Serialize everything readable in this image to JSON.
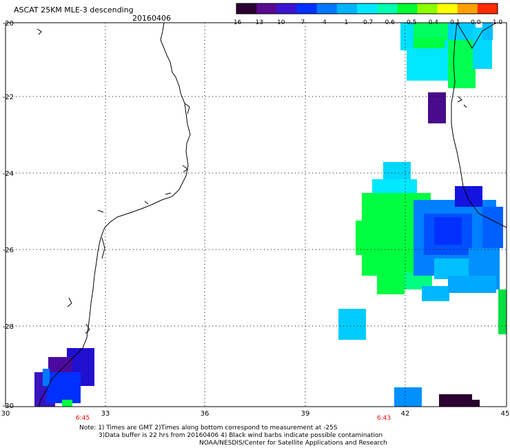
{
  "header": {
    "title": "ASCAT 25KM MLE-3 descending",
    "date": "20160406"
  },
  "colorbar": {
    "labels": [
      "-16",
      "-13",
      "-10",
      "-7",
      "-4",
      "-1",
      "-0.7",
      "-0.6",
      "-0.5",
      "-0.4",
      "-0.1",
      "0.0",
      "1.0"
    ],
    "colors": [
      "#2a0030",
      "#5a0a90",
      "#3a14d0",
      "#0030ff",
      "#0078ff",
      "#00b4ff",
      "#00e8ff",
      "#00ffb0",
      "#00ff30",
      "#8cff00",
      "#ffff00",
      "#ffa000",
      "#ff2a00"
    ]
  },
  "axes": {
    "y_ticks": [
      "-20",
      "-22",
      "-24",
      "-26",
      "-28",
      "-30"
    ],
    "x_ticks": [
      "30",
      "33",
      "36",
      "39",
      "42",
      "45"
    ],
    "lat_range": [
      -30,
      -20
    ],
    "lon_range": [
      30,
      45
    ]
  },
  "pass_times": [
    "6:45",
    "6:43"
  ],
  "notes": {
    "line1": "Note: 1) Times are GMT 2)Times along bottom correspond to measurement at -25S",
    "line2": "3)Data buffer is 22 hrs from 20160406 4) Black wind barbs indicate possible contamination",
    "line3": "NOAA/NESDIS/Center for Satellite Applications and Research"
  },
  "colors": {
    "pass_time": "#ff0000",
    "frame": "#000000",
    "grid": "#000000",
    "coastline": "#000000"
  }
}
